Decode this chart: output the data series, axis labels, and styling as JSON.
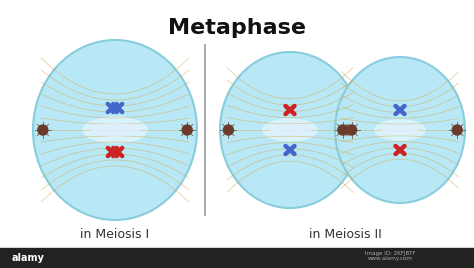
{
  "title": "Metaphase",
  "title_fontsize": 16,
  "title_fontweight": "bold",
  "label_meiosis1": "in Meiosis I",
  "label_meiosis2": "in Meiosis II",
  "label_fontsize": 9,
  "bg_color": "#ffffff",
  "cell_color": "#b8e8f5",
  "cell_edge_color": "#88ccdd",
  "spindle_color": "#d4a84b",
  "centromere_color": "#6b3a2a",
  "chr_blue": "#4466cc",
  "chr_red": "#cc2222",
  "equator_color": "#ffffff",
  "divider_color": "#999999"
}
